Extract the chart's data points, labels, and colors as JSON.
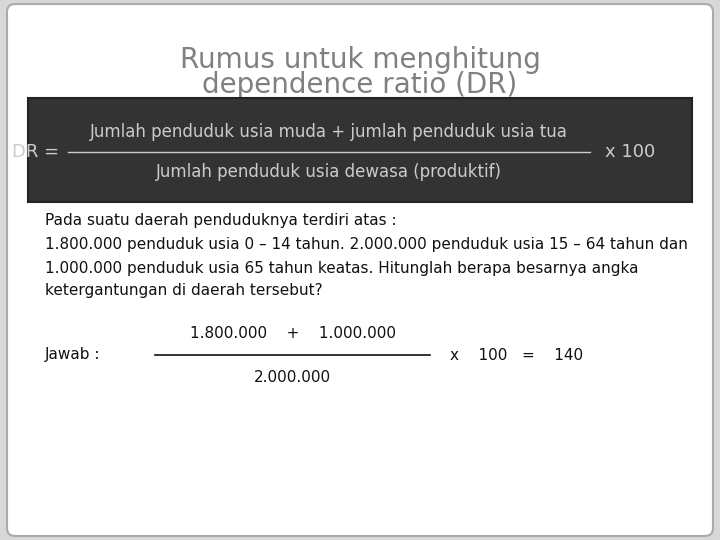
{
  "bg_color": "#d8d8d8",
  "card_bg": "#ffffff",
  "title_text_line1": "Rumus untuk menghitung",
  "title_text_line2": "dependence ratio (DR)",
  "title_color": "#808080",
  "formula_numerator": "Jumlah penduduk usia muda + jumlah penduduk usia tua",
  "formula_denominator": "Jumlah penduduk usia dewasa (produktif)",
  "formula_x100": "x 100",
  "formula_text_color": "#cccccc",
  "formula_box_bg": "#333333",
  "formula_box_edge": "#222222",
  "para_line1": "Pada suatu daerah penduduknya terdiri atas :",
  "para_line2": "1.800.000 penduduk usia 0 – 14 tahun. 2.000.000 penduduk usia 15 – 64 tahun dan",
  "para_line3": "1.000.000 penduduk usia 65 tahun keatas. Hitunglah berapa besarnya angka",
  "para_line4": "ketergantungan di daerah tersebut?",
  "jawab_label": "Jawab :",
  "jawab_numerator": "1.800.000    +    1.000.000",
  "jawab_denominator": "2.000.000",
  "jawab_suffix": "x    100   =    140",
  "text_color": "#111111",
  "line_color": "#111111",
  "font_size_title": 20,
  "font_size_formula": 12,
  "font_size_body": 11,
  "font_size_jawab": 11
}
